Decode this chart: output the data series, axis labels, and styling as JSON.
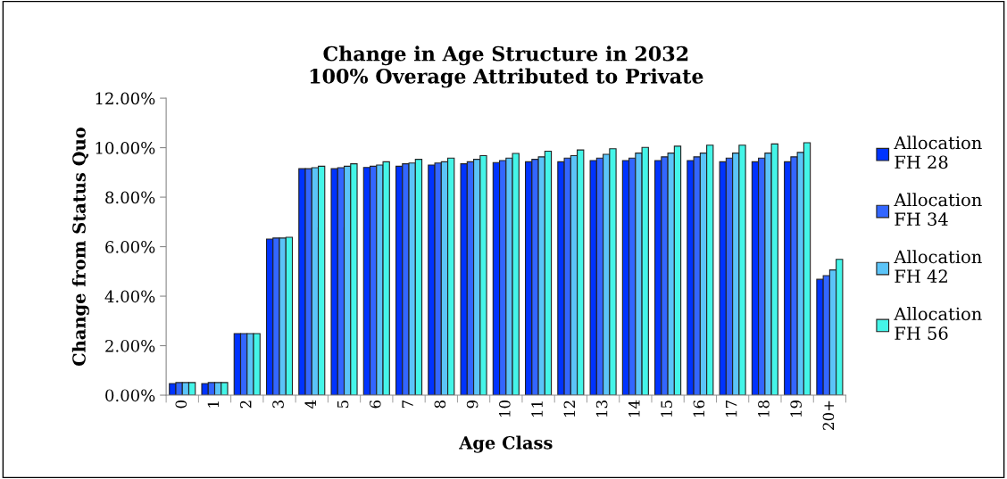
{
  "chart_data": {
    "type": "bar",
    "title": "Change in Age Structure in 2032\n100% Overage Attributed to Private",
    "xlabel": "Age Class",
    "ylabel": "Change from Status Quo",
    "categories": [
      "0",
      "1",
      "2",
      "3",
      "4",
      "5",
      "6",
      "7",
      "8",
      "9",
      "10",
      "11",
      "12",
      "13",
      "14",
      "15",
      "16",
      "17",
      "18",
      "19",
      "20+"
    ],
    "series": [
      {
        "name": "Allocation\nFH 28",
        "color": "#0033ff",
        "values": [
          0.47,
          0.47,
          2.49,
          6.31,
          9.15,
          9.15,
          9.2,
          9.25,
          9.3,
          9.35,
          9.4,
          9.43,
          9.43,
          9.48,
          9.48,
          9.48,
          9.48,
          9.43,
          9.43,
          9.43,
          4.68
        ]
      },
      {
        "name": "Allocation\nFH 34",
        "color": "#3366ff",
        "values": [
          0.51,
          0.51,
          2.49,
          6.35,
          9.15,
          9.19,
          9.25,
          9.35,
          9.38,
          9.43,
          9.48,
          9.53,
          9.58,
          9.58,
          9.58,
          9.63,
          9.63,
          9.58,
          9.58,
          9.63,
          4.83
        ]
      },
      {
        "name": "Allocation\nFH 42",
        "color": "#5bc4f8",
        "values": [
          0.51,
          0.51,
          2.49,
          6.35,
          9.19,
          9.25,
          9.3,
          9.38,
          9.43,
          9.53,
          9.58,
          9.63,
          9.68,
          9.73,
          9.78,
          9.78,
          9.78,
          9.78,
          9.78,
          9.81,
          5.06
        ]
      },
      {
        "name": "Allocation\nFH 56",
        "color": "#44f5e8",
        "values": [
          0.51,
          0.51,
          2.49,
          6.38,
          9.25,
          9.35,
          9.43,
          9.53,
          9.58,
          9.68,
          9.77,
          9.86,
          9.91,
          9.96,
          10.01,
          10.06,
          10.1,
          10.1,
          10.15,
          10.2,
          5.49
        ]
      }
    ],
    "ylim": [
      0,
      12
    ],
    "yticks": [
      {
        "value": 0,
        "label": "0.00%"
      },
      {
        "value": 2,
        "label": "2.00%"
      },
      {
        "value": 4,
        "label": "4.00%"
      },
      {
        "value": 6,
        "label": "6.00%"
      },
      {
        "value": 8,
        "label": "8.00%"
      },
      {
        "value": 10,
        "label": "10.00%"
      },
      {
        "value": 12,
        "label": "12.00%"
      }
    ],
    "grid": false,
    "legend": "right"
  }
}
